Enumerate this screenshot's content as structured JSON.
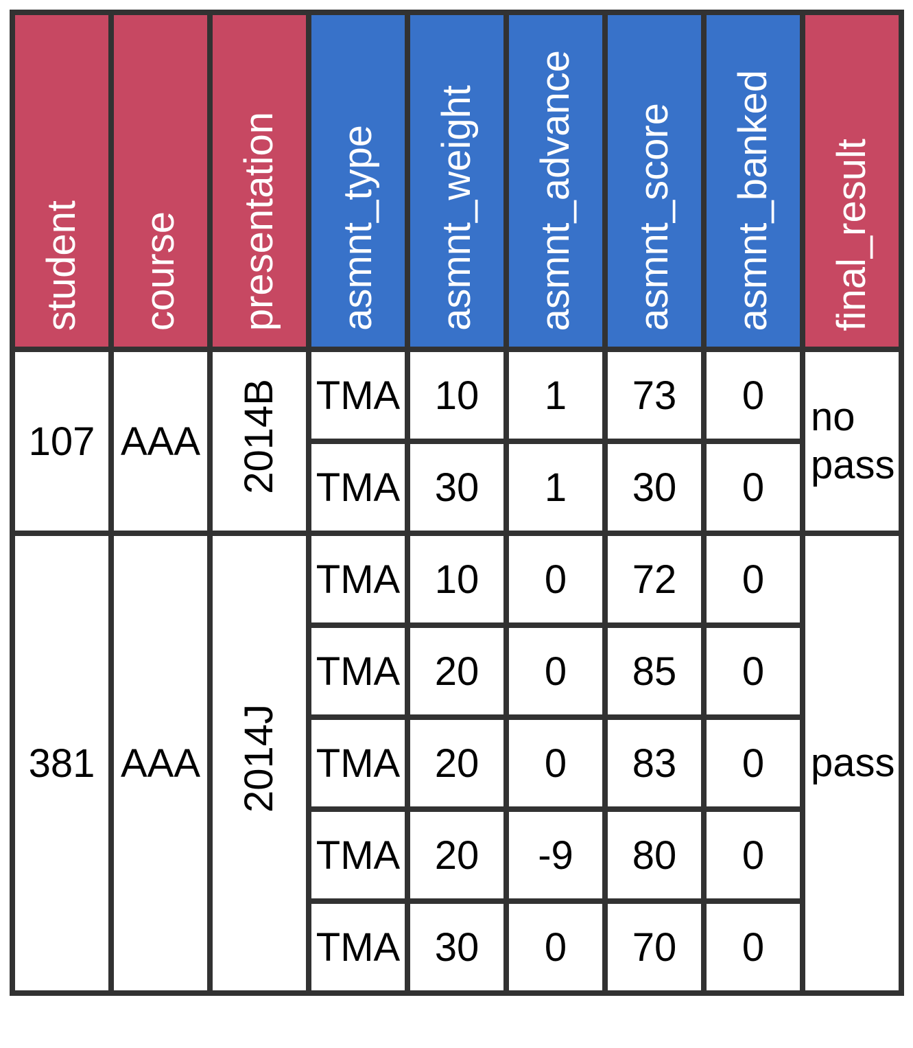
{
  "colors": {
    "red": "#c74862",
    "blue": "#3872c9",
    "border": "#323232",
    "cell-bg": "#ffffff",
    "header-text": "#ffffff",
    "data-text": "#000000"
  },
  "table": {
    "headers": [
      {
        "label": "student",
        "color": "red"
      },
      {
        "label": "course",
        "color": "red"
      },
      {
        "label": "presentation",
        "color": "red"
      },
      {
        "label": "asmnt_type",
        "color": "blue"
      },
      {
        "label": "asmnt_weight",
        "color": "blue"
      },
      {
        "label": "asmnt_advance",
        "color": "blue"
      },
      {
        "label": "asmnt_score",
        "color": "blue"
      },
      {
        "label": "asmnt_banked",
        "color": "blue"
      },
      {
        "label": "final_result",
        "color": "red"
      }
    ],
    "groups": [
      {
        "student": "107",
        "course": "AAA",
        "presentation": "2014B",
        "final_result": "no pass",
        "assessments": [
          {
            "type": "TMA",
            "weight": "10",
            "advance": "1",
            "score": "73",
            "banked": "0"
          },
          {
            "type": "TMA",
            "weight": "30",
            "advance": "1",
            "score": "30",
            "banked": "0"
          }
        ]
      },
      {
        "student": "381",
        "course": "AAA",
        "presentation": "2014J",
        "final_result": "pass",
        "assessments": [
          {
            "type": "TMA",
            "weight": "10",
            "advance": "0",
            "score": "72",
            "banked": "0"
          },
          {
            "type": "TMA",
            "weight": "20",
            "advance": "0",
            "score": "85",
            "banked": "0"
          },
          {
            "type": "TMA",
            "weight": "20",
            "advance": "0",
            "score": "83",
            "banked": "0"
          },
          {
            "type": "TMA",
            "weight": "20",
            "advance": "-9",
            "score": "80",
            "banked": "0"
          },
          {
            "type": "TMA",
            "weight": "30",
            "advance": "0",
            "score": "70",
            "banked": "0"
          }
        ]
      }
    ]
  },
  "chart_data": {
    "type": "table",
    "columns": [
      "student",
      "course",
      "presentation",
      "asmnt_type",
      "asmnt_weight",
      "asmnt_advance",
      "asmnt_score",
      "asmnt_banked",
      "final_result"
    ],
    "rows": [
      [
        107,
        "AAA",
        "2014B",
        "TMA",
        10,
        1,
        73,
        0,
        "no pass"
      ],
      [
        107,
        "AAA",
        "2014B",
        "TMA",
        30,
        1,
        30,
        0,
        "no pass"
      ],
      [
        381,
        "AAA",
        "2014J",
        "TMA",
        10,
        0,
        72,
        0,
        "pass"
      ],
      [
        381,
        "AAA",
        "2014J",
        "TMA",
        20,
        0,
        85,
        0,
        "pass"
      ],
      [
        381,
        "AAA",
        "2014J",
        "TMA",
        20,
        0,
        83,
        0,
        "pass"
      ],
      [
        381,
        "AAA",
        "2014J",
        "TMA",
        20,
        -9,
        80,
        0,
        "pass"
      ],
      [
        381,
        "AAA",
        "2014J",
        "TMA",
        30,
        0,
        70,
        0,
        "pass"
      ]
    ],
    "layout": {
      "rotated_headers": true,
      "red_columns": [
        "student",
        "course",
        "presentation",
        "final_result"
      ],
      "blue_columns": [
        "asmnt_type",
        "asmnt_weight",
        "asmnt_advance",
        "asmnt_score",
        "asmnt_banked"
      ],
      "merged_cells": "student/course/presentation/final_result span all assessment rows of each student group"
    }
  }
}
